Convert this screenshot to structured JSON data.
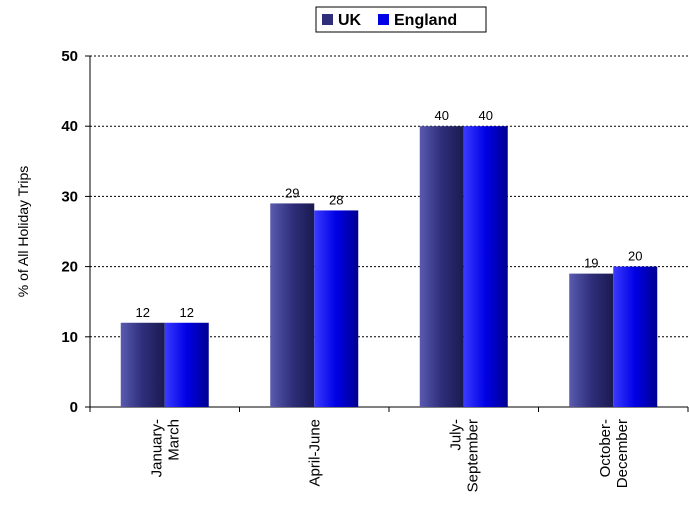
{
  "chart_data": {
    "type": "bar",
    "categories": [
      [
        "January-",
        "March"
      ],
      [
        "April-June"
      ],
      [
        "July-",
        "September"
      ],
      [
        "October-",
        "December"
      ]
    ],
    "series": [
      {
        "name": "UK",
        "values": [
          12,
          29,
          40,
          19
        ],
        "color": "#2e2e7a"
      },
      {
        "name": "England",
        "values": [
          12,
          28,
          40,
          20
        ],
        "color": "#0000e6"
      }
    ],
    "ylabel": "% of All Holiday Trips",
    "ylim": [
      0,
      50
    ],
    "yticks": [
      0,
      10,
      20,
      30,
      40,
      50
    ],
    "grid": true,
    "legend": "top"
  }
}
